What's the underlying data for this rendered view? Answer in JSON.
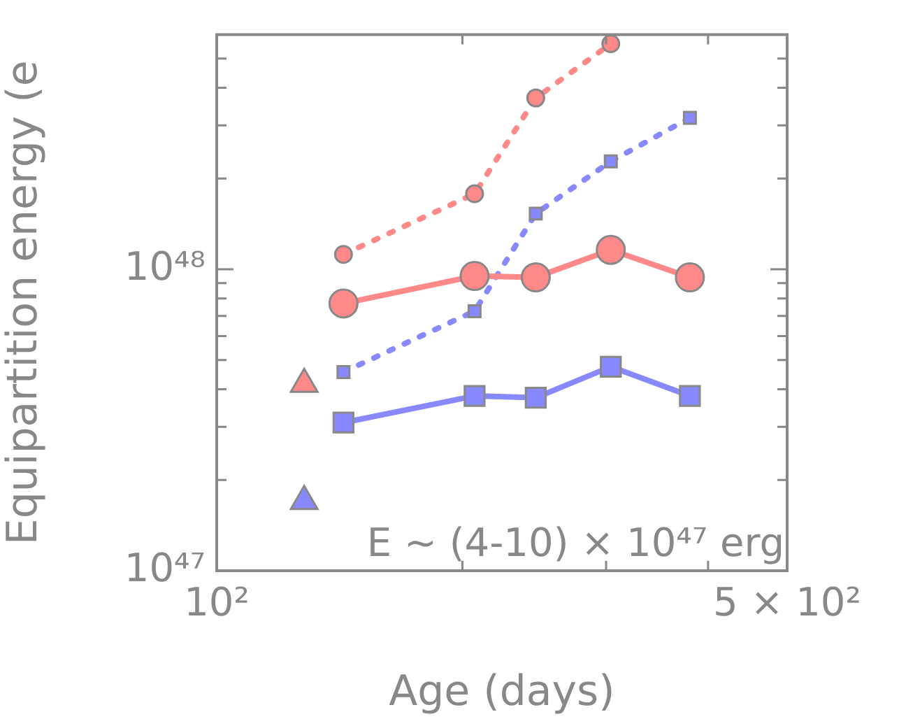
{
  "chart_data": {
    "type": "line",
    "xlabel": "Age (days)",
    "ylabel": "Equipartition energy (e",
    "log": "xy",
    "grid": false,
    "legend": false,
    "xlim": [
      100,
      500
    ],
    "xticks": [
      {
        "value": 100,
        "label": "10²"
      },
      {
        "value": 200,
        "label": null
      },
      {
        "value": 300,
        "label": null
      },
      {
        "value": 400,
        "label": null
      },
      {
        "value": 500,
        "label": "5 × 10²"
      }
    ],
    "ylim": [
      1e+47,
      6e+48
    ],
    "yticks": [
      {
        "value": 1e+47,
        "label": "10⁴⁷"
      },
      {
        "value": 2e+47,
        "label": null
      },
      {
        "value": 3e+47,
        "label": null
      },
      {
        "value": 4e+47,
        "label": null
      },
      {
        "value": 5e+47,
        "label": null
      },
      {
        "value": 6e+47,
        "label": null
      },
      {
        "value": 7e+47,
        "label": null
      },
      {
        "value": 8e+47,
        "label": null
      },
      {
        "value": 9e+47,
        "label": null
      },
      {
        "value": 1e+48,
        "label": "10⁴⁸"
      },
      {
        "value": 2e+48,
        "label": null
      },
      {
        "value": 3e+48,
        "label": null
      },
      {
        "value": 4e+48,
        "label": null
      },
      {
        "value": 5e+48,
        "label": null
      }
    ],
    "x": [
      143,
      207,
      246,
      304,
      380
    ],
    "series": [
      {
        "color": "#ff8888",
        "marker": "circle",
        "line_style": "solid",
        "values": [
          7.7e+47,
          9.5e+47,
          9.4e+47,
          1.16e+48,
          9.4e+47
        ]
      },
      {
        "color": "#8888ff",
        "marker": "square",
        "line_style": "solid",
        "values": [
          3.1e+47,
          3.8e+47,
          3.75e+47,
          4.75e+47,
          3.8e+47
        ]
      },
      {
        "color": "#ff8888",
        "marker": "circle",
        "line_style": "dotted",
        "values": [
          1.12e+48,
          1.78e+48,
          3.7e+48,
          5.6e+48,
          null
        ]
      },
      {
        "color": "#8888ff",
        "marker": "square",
        "line_style": "dotted",
        "values": [
          4.56e+47,
          7.26e+47,
          1.53e+48,
          2.28e+48,
          3.18e+48
        ]
      },
      {
        "type": "scatter",
        "color": "#ff8888",
        "marker": "triangle",
        "x": [
          128
        ],
        "values": [
          4.16e+47
        ]
      },
      {
        "type": "scatter",
        "color": "#8888ff",
        "marker": "triangle",
        "x": [
          128
        ],
        "values": [
          1.7e+47
        ]
      }
    ],
    "annotations": [
      "E ~ (4-10) × 10⁴⁷ erg"
    ]
  }
}
